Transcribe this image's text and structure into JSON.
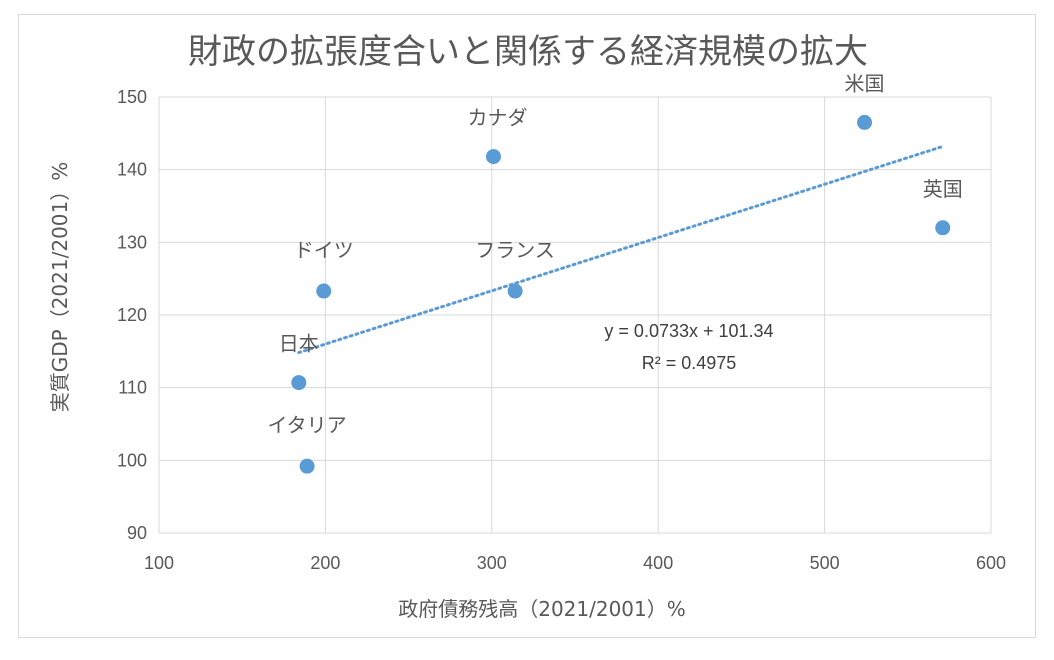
{
  "chart_data": {
    "type": "scatter",
    "title": "財政の拡張度合いと関係する経済規模の拡大",
    "xlabel": "政府債務残高（2021/2001）%",
    "ylabel": "実質GDP（2021/2001）%",
    "xlim": [
      100,
      600
    ],
    "ylim": [
      90,
      150
    ],
    "x_ticks": [
      100,
      200,
      300,
      400,
      500,
      600
    ],
    "y_ticks": [
      90,
      100,
      110,
      120,
      130,
      140,
      150
    ],
    "grid": true,
    "marker_color": "#5b9bd5",
    "trendline_color": "#5b9bd5",
    "points": [
      {
        "label": "米国",
        "x": 524,
        "y": 146.5
      },
      {
        "label": "カナダ",
        "x": 301,
        "y": 141.8
      },
      {
        "label": "英国",
        "x": 571,
        "y": 132
      },
      {
        "label": "ドイツ",
        "x": 199,
        "y": 123.3
      },
      {
        "label": "フランス",
        "x": 314,
        "y": 123.3
      },
      {
        "label": "日本",
        "x": 184,
        "y": 110.7
      },
      {
        "label": "イタリア",
        "x": 189,
        "y": 99.2
      }
    ],
    "trendline": {
      "type": "linear",
      "slope": 0.0733,
      "intercept": 101.34,
      "x_range": [
        184,
        571
      ],
      "equation": "y = 0.0733x + 101.34",
      "r_squared": "R² = 0.4975"
    }
  }
}
